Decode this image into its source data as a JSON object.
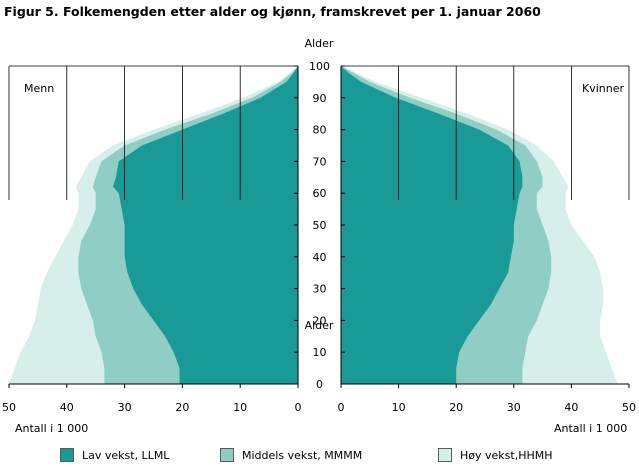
{
  "title": "Figur 5. Folkemengden etter alder og kjønn, framskrevet per 1. januar 2060",
  "chart_data": {
    "type": "area",
    "subtype": "population-pyramid",
    "left_label": "Menn",
    "right_label": "Kvinner",
    "age_axis_label": "Alder",
    "age_ticks": [
      0,
      10,
      20,
      30,
      40,
      50,
      60,
      70,
      80,
      90,
      100
    ],
    "value_axis_label": "Antall i 1 000",
    "value_ticks": [
      0,
      10,
      20,
      30,
      40,
      50
    ],
    "xlim": [
      0,
      50
    ],
    "ylim": [
      0,
      100
    ],
    "grid": "vertical lines at 10, 20, 30, 40 above 1 000-level",
    "colors": {
      "low": "#1a9a96",
      "mid": "#8fcdc5",
      "high": "#d6efea"
    },
    "ages": [
      0,
      5,
      10,
      15,
      20,
      25,
      30,
      35,
      40,
      45,
      50,
      55,
      60,
      62,
      65,
      70,
      75,
      80,
      85,
      90,
      95,
      98,
      100
    ],
    "series": [
      {
        "name": "Lav vekst, LLML",
        "color_key": "low",
        "men": [
          20.5,
          20.5,
          21.5,
          23,
          25,
          27,
          28.5,
          29.5,
          30,
          30,
          30,
          30.5,
          31,
          32,
          31.5,
          31,
          27,
          20,
          13,
          6.5,
          2,
          0.7,
          0
        ],
        "women": [
          20,
          20,
          20.5,
          22,
          24,
          26,
          27.5,
          29,
          29.5,
          30,
          30,
          30.5,
          31,
          31.5,
          31.5,
          31,
          29,
          24,
          17,
          9.5,
          3.5,
          1.2,
          0
        ]
      },
      {
        "name": "Middels vekst, MMMM",
        "color_key": "mid",
        "men": [
          33.5,
          33.5,
          34,
          35,
          35.5,
          36.5,
          37.5,
          38,
          38,
          37.5,
          36,
          35,
          35,
          35.5,
          35,
          34,
          30,
          23,
          15,
          8,
          3,
          1,
          0
        ],
        "women": [
          31.5,
          31.5,
          32,
          32.5,
          34,
          35,
          36,
          36.5,
          36.5,
          36,
          35,
          34,
          34,
          35,
          35,
          34,
          32,
          27,
          20,
          12,
          5,
          2,
          0
        ],
        "note": "values shown as cumulative outer edge"
      },
      {
        "name": "Høy vekst,HHMH",
        "color_key": "high",
        "men": [
          50,
          49,
          48,
          46.5,
          45.5,
          45,
          44.5,
          43.5,
          42,
          40.5,
          39,
          38,
          38,
          38.5,
          37.5,
          36,
          32,
          25,
          17,
          9.5,
          3.5,
          1.2,
          0
        ],
        "women": [
          48,
          47,
          46,
          45,
          45,
          45.5,
          45.5,
          45,
          44,
          42,
          40,
          39,
          39,
          39.5,
          38.5,
          37,
          34,
          29,
          22,
          14,
          6,
          2.5,
          0
        ],
        "note": "values shown as cumulative outer edge"
      }
    ]
  },
  "legend": [
    {
      "label": "Lav vekst, LLML",
      "color": "#1a9a96"
    },
    {
      "label": "Middels vekst, MMMM",
      "color": "#8fcdc5"
    },
    {
      "label": "Høy vekst,HHMH",
      "color": "#d6efea"
    }
  ]
}
